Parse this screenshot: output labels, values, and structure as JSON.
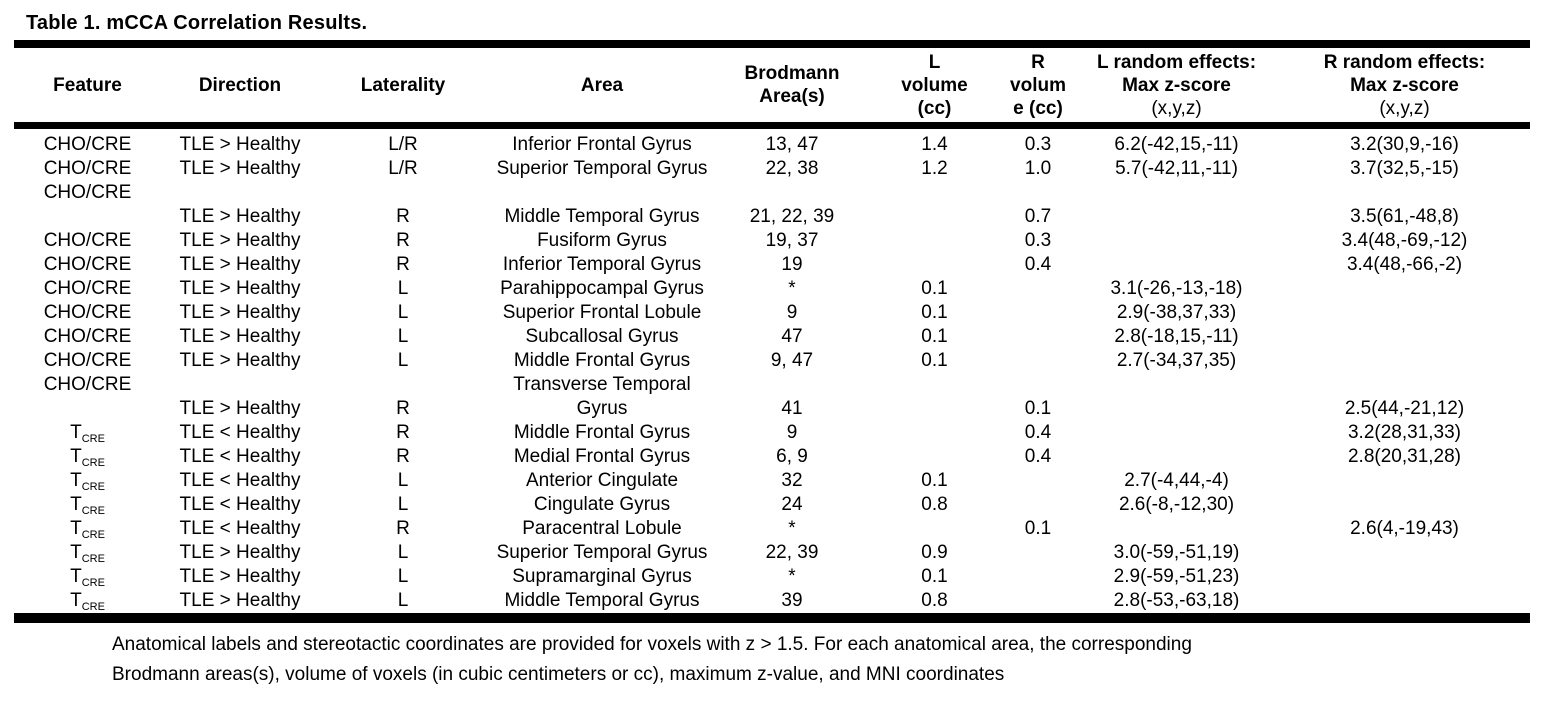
{
  "title": "Table 1. mCCA Correlation Results.",
  "table": {
    "columns": [
      {
        "id": "feature",
        "label": "Feature"
      },
      {
        "id": "direction",
        "label": "Direction"
      },
      {
        "id": "laterality",
        "label": "Laterality"
      },
      {
        "id": "area",
        "label": "Area"
      },
      {
        "id": "brodmann",
        "label": "Brodmann\nArea(s)"
      },
      {
        "id": "l_volume",
        "label": "L\nvolume\n(cc)"
      },
      {
        "id": "r_volume",
        "label": "R\nvolum\ne (cc)"
      },
      {
        "id": "l_random",
        "label": "L random effects:\nMax z-score",
        "sublabel": "(x,y,z)"
      },
      {
        "id": "r_random",
        "label": "R random effects:\nMax z-score",
        "sublabel": "(x,y,z)"
      }
    ],
    "rows": [
      {
        "feature": "CHO/CRE",
        "direction": "TLE > Healthy",
        "laterality": "L/R",
        "area": "Inferior Frontal Gyrus",
        "brodmann": "13, 47",
        "l_volume": "1.4",
        "r_volume": "0.3",
        "l_random": "6.2(-42,15,-11)",
        "r_random": "3.2(30,9,-16)"
      },
      {
        "feature": "CHO/CRE",
        "direction": "TLE > Healthy",
        "laterality": "L/R",
        "area": "Superior Temporal Gyrus",
        "brodmann": "22, 38",
        "l_volume": "1.2",
        "r_volume": "1.0",
        "l_random": "5.7(-42,11,-11)",
        "r_random": "3.7(32,5,-15)"
      },
      {
        "feature": "CHO/CRE",
        "direction": "TLE > Healthy",
        "laterality": "R",
        "area": "Middle Temporal Gyrus",
        "brodmann": "21, 22, 39",
        "l_volume": "",
        "r_volume": "0.7",
        "l_random": "",
        "r_random": "3.5(61,-48,8)",
        "tall": true
      },
      {
        "feature": "CHO/CRE",
        "direction": "TLE > Healthy",
        "laterality": "R",
        "area": "Fusiform Gyrus",
        "brodmann": "19, 37",
        "l_volume": "",
        "r_volume": "0.3",
        "l_random": "",
        "r_random": "3.4(48,-69,-12)"
      },
      {
        "feature": "CHO/CRE",
        "direction": "TLE > Healthy",
        "laterality": "R",
        "area": "Inferior Temporal Gyrus",
        "brodmann": "19",
        "l_volume": "",
        "r_volume": "0.4",
        "l_random": "",
        "r_random": "3.4(48,-66,-2)"
      },
      {
        "feature": "CHO/CRE",
        "direction": "TLE > Healthy",
        "laterality": "L",
        "area": "Parahippocampal Gyrus",
        "brodmann": "*",
        "l_volume": "0.1",
        "r_volume": "",
        "l_random": "3.1(-26,-13,-18)",
        "r_random": ""
      },
      {
        "feature": "CHO/CRE",
        "direction": "TLE > Healthy",
        "laterality": "L",
        "area": "Superior Frontal Lobule",
        "brodmann": "9",
        "l_volume": "0.1",
        "r_volume": "",
        "l_random": "2.9(-38,37,33)",
        "r_random": ""
      },
      {
        "feature": "CHO/CRE",
        "direction": "TLE > Healthy",
        "laterality": "L",
        "area": "Subcallosal Gyrus",
        "brodmann": "47",
        "l_volume": "0.1",
        "r_volume": "",
        "l_random": "2.8(-18,15,-11)",
        "r_random": ""
      },
      {
        "feature": "CHO/CRE",
        "direction": "TLE > Healthy",
        "laterality": "L",
        "area": "Middle Frontal Gyrus",
        "brodmann": "9, 47",
        "l_volume": "0.1",
        "r_volume": "",
        "l_random": "2.7(-34,37,35)",
        "r_random": ""
      },
      {
        "feature": "CHO/CRE",
        "direction": "TLE > Healthy",
        "laterality": "R",
        "area": "Transverse Temporal\nGyrus",
        "brodmann": "41",
        "l_volume": "",
        "r_volume": "0.1",
        "l_random": "",
        "r_random": "2.5(44,-21,12)",
        "tall": true
      },
      {
        "feature": "T",
        "feature_sub": "CRE",
        "direction": "TLE < Healthy",
        "laterality": "R",
        "area": "Middle Frontal Gyrus",
        "brodmann": "9",
        "l_volume": "",
        "r_volume": "0.4",
        "l_random": "",
        "r_random": "3.2(28,31,33)"
      },
      {
        "feature": "T",
        "feature_sub": "CRE",
        "direction": "TLE < Healthy",
        "laterality": "R",
        "area": "Medial Frontal Gyrus",
        "brodmann": "6, 9",
        "l_volume": "",
        "r_volume": "0.4",
        "l_random": "",
        "r_random": "2.8(20,31,28)"
      },
      {
        "feature": "T",
        "feature_sub": "CRE",
        "direction": "TLE < Healthy",
        "laterality": "L",
        "area": "Anterior Cingulate",
        "brodmann": "32",
        "l_volume": "0.1",
        "r_volume": "",
        "l_random": "2.7(-4,44,-4)",
        "r_random": ""
      },
      {
        "feature": "T",
        "feature_sub": "CRE",
        "direction": "TLE < Healthy",
        "laterality": "L",
        "area": "Cingulate Gyrus",
        "brodmann": "24",
        "l_volume": "0.8",
        "r_volume": "",
        "l_random": "2.6(-8,-12,30)",
        "r_random": ""
      },
      {
        "feature": "T",
        "feature_sub": "CRE",
        "direction": "TLE < Healthy",
        "laterality": "R",
        "area": "Paracentral Lobule",
        "brodmann": "*",
        "l_volume": "",
        "r_volume": "0.1",
        "l_random": "",
        "r_random": "2.6(4,-19,43)"
      },
      {
        "feature": "T",
        "feature_sub": "CRE",
        "direction": "TLE > Healthy",
        "laterality": "L",
        "area": "Superior Temporal Gyrus",
        "brodmann": "22, 39",
        "l_volume": "0.9",
        "r_volume": "",
        "l_random": "3.0(-59,-51,19)",
        "r_random": ""
      },
      {
        "feature": "T",
        "feature_sub": "CRE",
        "direction": "TLE > Healthy",
        "laterality": "L",
        "area": "Supramarginal Gyrus",
        "brodmann": "*",
        "l_volume": "0.1",
        "r_volume": "",
        "l_random": "2.9(-59,-51,23)",
        "r_random": ""
      },
      {
        "feature": "T",
        "feature_sub": "CRE",
        "direction": "TLE > Healthy",
        "laterality": "L",
        "area": "Middle Temporal Gyrus",
        "brodmann": "39",
        "l_volume": "0.8",
        "r_volume": "",
        "l_random": "2.8(-53,-63,18)",
        "r_random": ""
      }
    ]
  },
  "footnote": {
    "line1": "Anatomical labels and stereotactic coordinates are provided for voxels with z > 1.5. For each anatomical area, the corresponding",
    "line2": "Brodmann areas(s), volume of voxels (in cubic centimeters or cc), maximum z-value, and MNI coordinates"
  }
}
